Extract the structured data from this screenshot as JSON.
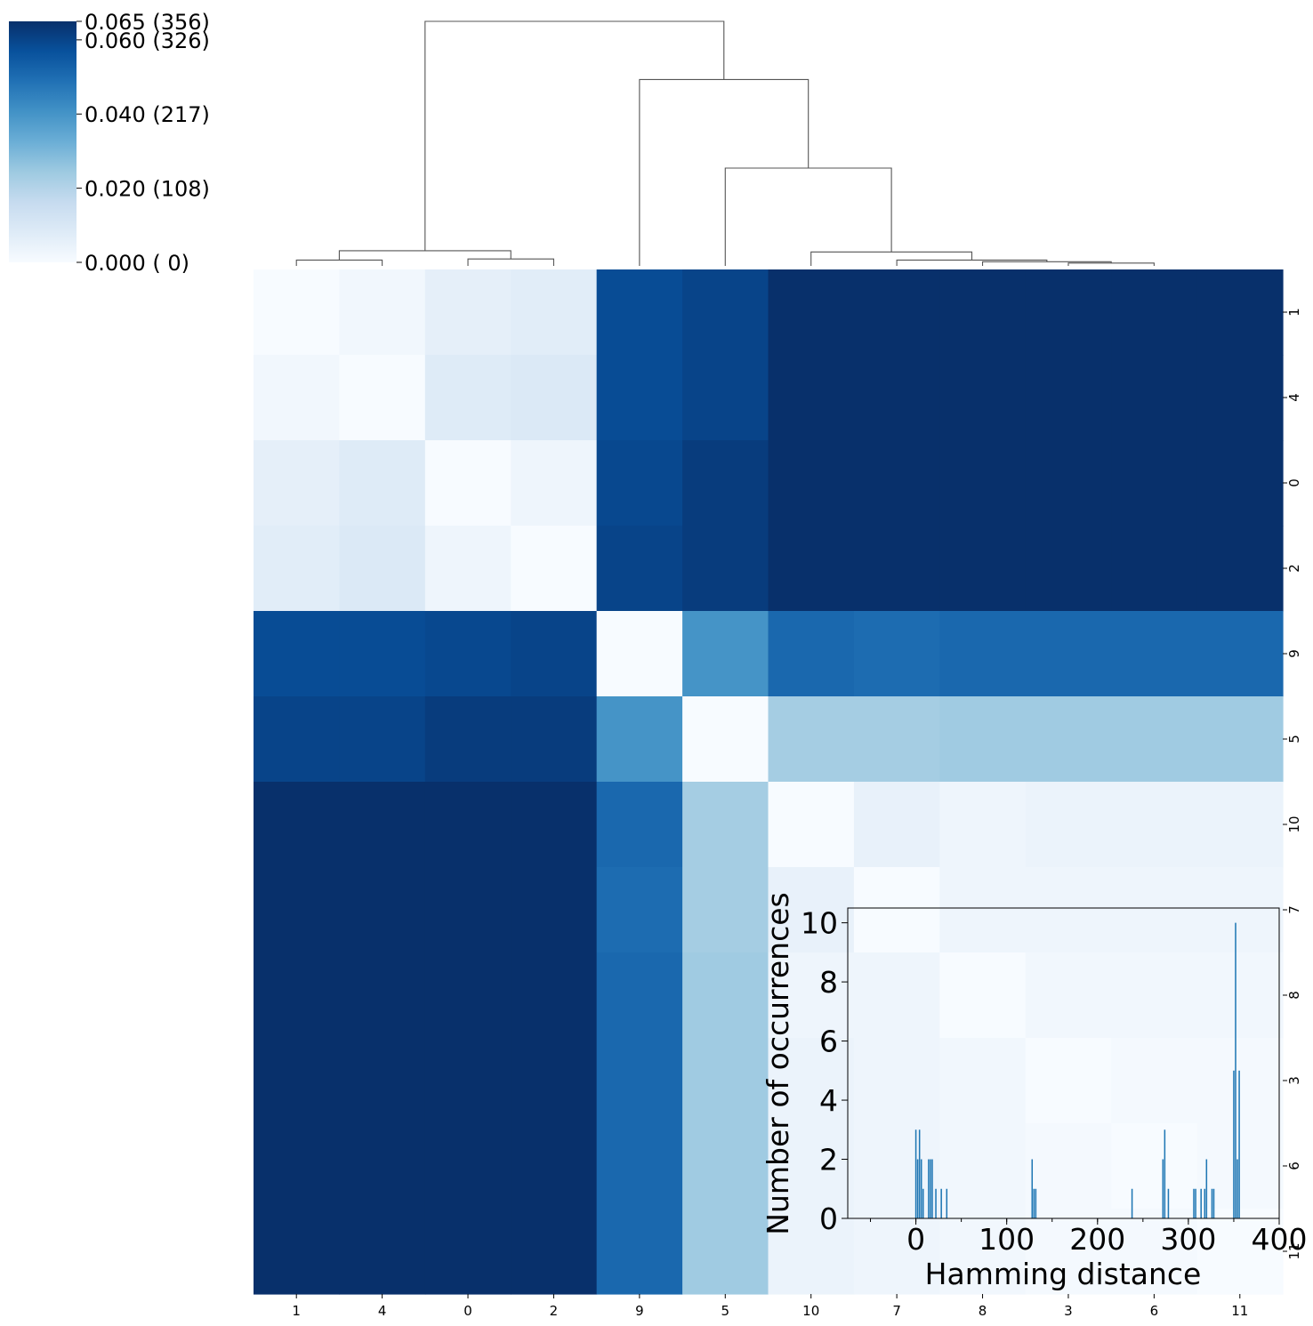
{
  "chart_data": [
    {
      "type": "heatmap",
      "title": "",
      "row_labels": [
        "1",
        "4",
        "0",
        "2",
        "9",
        "5",
        "10",
        "7",
        "8",
        "3",
        "6",
        "11"
      ],
      "col_labels": [
        "1",
        "4",
        "0",
        "2",
        "9",
        "5",
        "10",
        "7",
        "8",
        "3",
        "6",
        "11"
      ],
      "values": [
        [
          0.0,
          0.002,
          0.006,
          0.007,
          0.058,
          0.06,
          0.065,
          0.065,
          0.065,
          0.065,
          0.065,
          0.065
        ],
        [
          0.002,
          0.0,
          0.008,
          0.009,
          0.058,
          0.06,
          0.065,
          0.065,
          0.065,
          0.065,
          0.065,
          0.065
        ],
        [
          0.006,
          0.008,
          0.0,
          0.003,
          0.059,
          0.062,
          0.065,
          0.065,
          0.065,
          0.065,
          0.065,
          0.065
        ],
        [
          0.007,
          0.009,
          0.003,
          0.0,
          0.06,
          0.062,
          0.065,
          0.065,
          0.065,
          0.065,
          0.065,
          0.065
        ],
        [
          0.058,
          0.058,
          0.059,
          0.06,
          0.0,
          0.04,
          0.051,
          0.05,
          0.051,
          0.051,
          0.051,
          0.051
        ],
        [
          0.06,
          0.06,
          0.062,
          0.062,
          0.04,
          0.0,
          0.023,
          0.023,
          0.024,
          0.024,
          0.024,
          0.024
        ],
        [
          0.065,
          0.065,
          0.065,
          0.065,
          0.051,
          0.023,
          0.0,
          0.005,
          0.003,
          0.004,
          0.004,
          0.004
        ],
        [
          0.065,
          0.065,
          0.065,
          0.065,
          0.05,
          0.023,
          0.005,
          0.0,
          0.003,
          0.003,
          0.003,
          0.003
        ],
        [
          0.065,
          0.065,
          0.065,
          0.065,
          0.051,
          0.024,
          0.003,
          0.003,
          0.0,
          0.002,
          0.002,
          0.002
        ],
        [
          0.065,
          0.065,
          0.065,
          0.065,
          0.051,
          0.024,
          0.004,
          0.003,
          0.002,
          0.0,
          0.001,
          0.001
        ],
        [
          0.065,
          0.065,
          0.065,
          0.065,
          0.051,
          0.024,
          0.004,
          0.003,
          0.002,
          0.001,
          0.0,
          0.001
        ],
        [
          0.065,
          0.065,
          0.065,
          0.065,
          0.051,
          0.024,
          0.004,
          0.003,
          0.002,
          0.001,
          0.001,
          0.0
        ]
      ],
      "vmin": 0.0,
      "vmax": 0.065,
      "colormap": "Blues",
      "colormap_stops": [
        "#f7fbff",
        "#deebf7",
        "#c6dbef",
        "#9ecae1",
        "#6baed6",
        "#4292c6",
        "#2171b5",
        "#08519c",
        "#08306b"
      ],
      "colorbar_ticks": [
        {
          "value": 0.0,
          "label": "0.000 (  0)"
        },
        {
          "value": 0.02,
          "label": "0.020 (108)"
        },
        {
          "value": 0.04,
          "label": "0.040 (217)"
        },
        {
          "value": 0.06,
          "label": "0.060 (326)"
        },
        {
          "value": 0.065,
          "label": "0.065 (356)"
        }
      ],
      "dendrogram": {
        "leaves": [
          "1",
          "4",
          "0",
          "2",
          "9",
          "5",
          "10",
          "7",
          "8",
          "3",
          "6",
          "11"
        ],
        "merges": [
          {
            "left": 9,
            "right": 10,
            "height": 0.0012
          },
          {
            "left": 8,
            "right": 12,
            "height": 0.0018
          },
          {
            "left": 7,
            "right": 13,
            "height": 0.0025
          },
          {
            "left": 0,
            "right": 1,
            "height": 0.0025
          },
          {
            "left": 2,
            "right": 3,
            "height": 0.003
          },
          {
            "left": 6,
            "right": 14,
            "height": 0.006
          },
          {
            "left": 15,
            "right": 16,
            "height": 0.0065
          },
          {
            "left": 5,
            "right": 17,
            "height": 0.042
          },
          {
            "left": 4,
            "right": 19,
            "height": 0.08
          },
          {
            "left": 18,
            "right": 20,
            "height": 0.105
          }
        ],
        "max_height": 0.105,
        "line_color": "#555555"
      },
      "grid": false
    },
    {
      "type": "bar",
      "title": "",
      "xlabel": "Hamming distance",
      "ylabel": "Number of occurrences",
      "xlim": [
        -75,
        400
      ],
      "ylim": [
        0,
        10.5
      ],
      "xticks": [
        0,
        100,
        200,
        300,
        400
      ],
      "yticks": [
        0,
        2,
        4,
        6,
        8,
        10
      ],
      "bar_color": "#1f77b4",
      "bar_width": 1.5,
      "x": [
        0,
        2,
        4,
        6,
        8,
        14,
        16,
        18,
        22,
        28,
        34,
        128,
        130,
        132,
        238,
        272,
        274,
        278,
        306,
        308,
        314,
        318,
        320,
        326,
        328,
        350,
        352,
        354,
        356
      ],
      "values": [
        3,
        2,
        3,
        2,
        1,
        2,
        2,
        2,
        1,
        1,
        1,
        2,
        1,
        1,
        1,
        2,
        3,
        1,
        1,
        1,
        1,
        1,
        2,
        1,
        1,
        5,
        10,
        2,
        5
      ],
      "grid": false,
      "legend": "none"
    }
  ]
}
